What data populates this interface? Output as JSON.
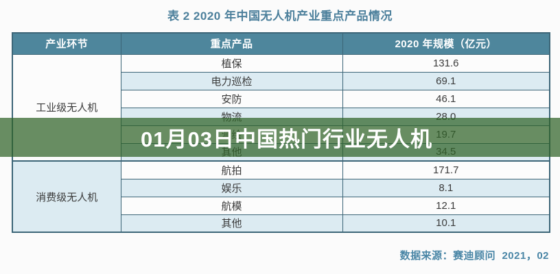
{
  "page": {
    "title": "表 2  2020 年中国无人机产业重点产品情况",
    "source_note": "数据来源：赛迪顾问  2021，02"
  },
  "overlay": {
    "text": "01月03日中国热门行业无人机",
    "band_color": "rgba(47,99,39,0.72)",
    "text_color": "#ffffff"
  },
  "colors": {
    "header_bg": "#4e869c",
    "header_text": "#ffffff",
    "border": "#3c6577",
    "row_white": "#fcfcfc",
    "row_blue": "#dcebf2",
    "title_text": "#4b7f9b",
    "source_text": "#4a86a6"
  },
  "table": {
    "headers": [
      "产业环节",
      "重点产品",
      "2020 年规模（亿元）"
    ],
    "sections": [
      {
        "category": "工业级无人机",
        "rows": [
          {
            "product": "植保",
            "value": "131.6"
          },
          {
            "product": "电力巡检",
            "value": "69.1"
          },
          {
            "product": "安防",
            "value": "46.1"
          },
          {
            "product": "物流",
            "value": "28.0"
          },
          {
            "product": "测绘",
            "value": "19.7"
          },
          {
            "product": "其他",
            "value": "34.5"
          }
        ]
      },
      {
        "category": "消费级无人机",
        "rows": [
          {
            "product": "航拍",
            "value": "171.7"
          },
          {
            "product": "娱乐",
            "value": "8.1"
          },
          {
            "product": "航模",
            "value": "12.1"
          },
          {
            "product": "其他",
            "value": "10.1"
          }
        ]
      }
    ]
  },
  "chart_data": {
    "type": "table",
    "title": "表 2 2020 年中国无人机产业重点产品情况",
    "columns": [
      "产业环节",
      "重点产品",
      "2020 年规模（亿元）"
    ],
    "rows": [
      [
        "工业级无人机",
        "植保",
        131.6
      ],
      [
        "工业级无人机",
        "电力巡检",
        69.1
      ],
      [
        "工业级无人机",
        "安防",
        46.1
      ],
      [
        "工业级无人机",
        "物流",
        28.0
      ],
      [
        "工业级无人机",
        "测绘",
        19.7
      ],
      [
        "工业级无人机",
        "其他",
        34.5
      ],
      [
        "消费级无人机",
        "航拍",
        171.7
      ],
      [
        "消费级无人机",
        "娱乐",
        8.1
      ],
      [
        "消费级无人机",
        "航模",
        12.1
      ],
      [
        "消费级无人机",
        "其他",
        10.1
      ]
    ],
    "source": "数据来源：赛迪顾问 2021，02"
  }
}
